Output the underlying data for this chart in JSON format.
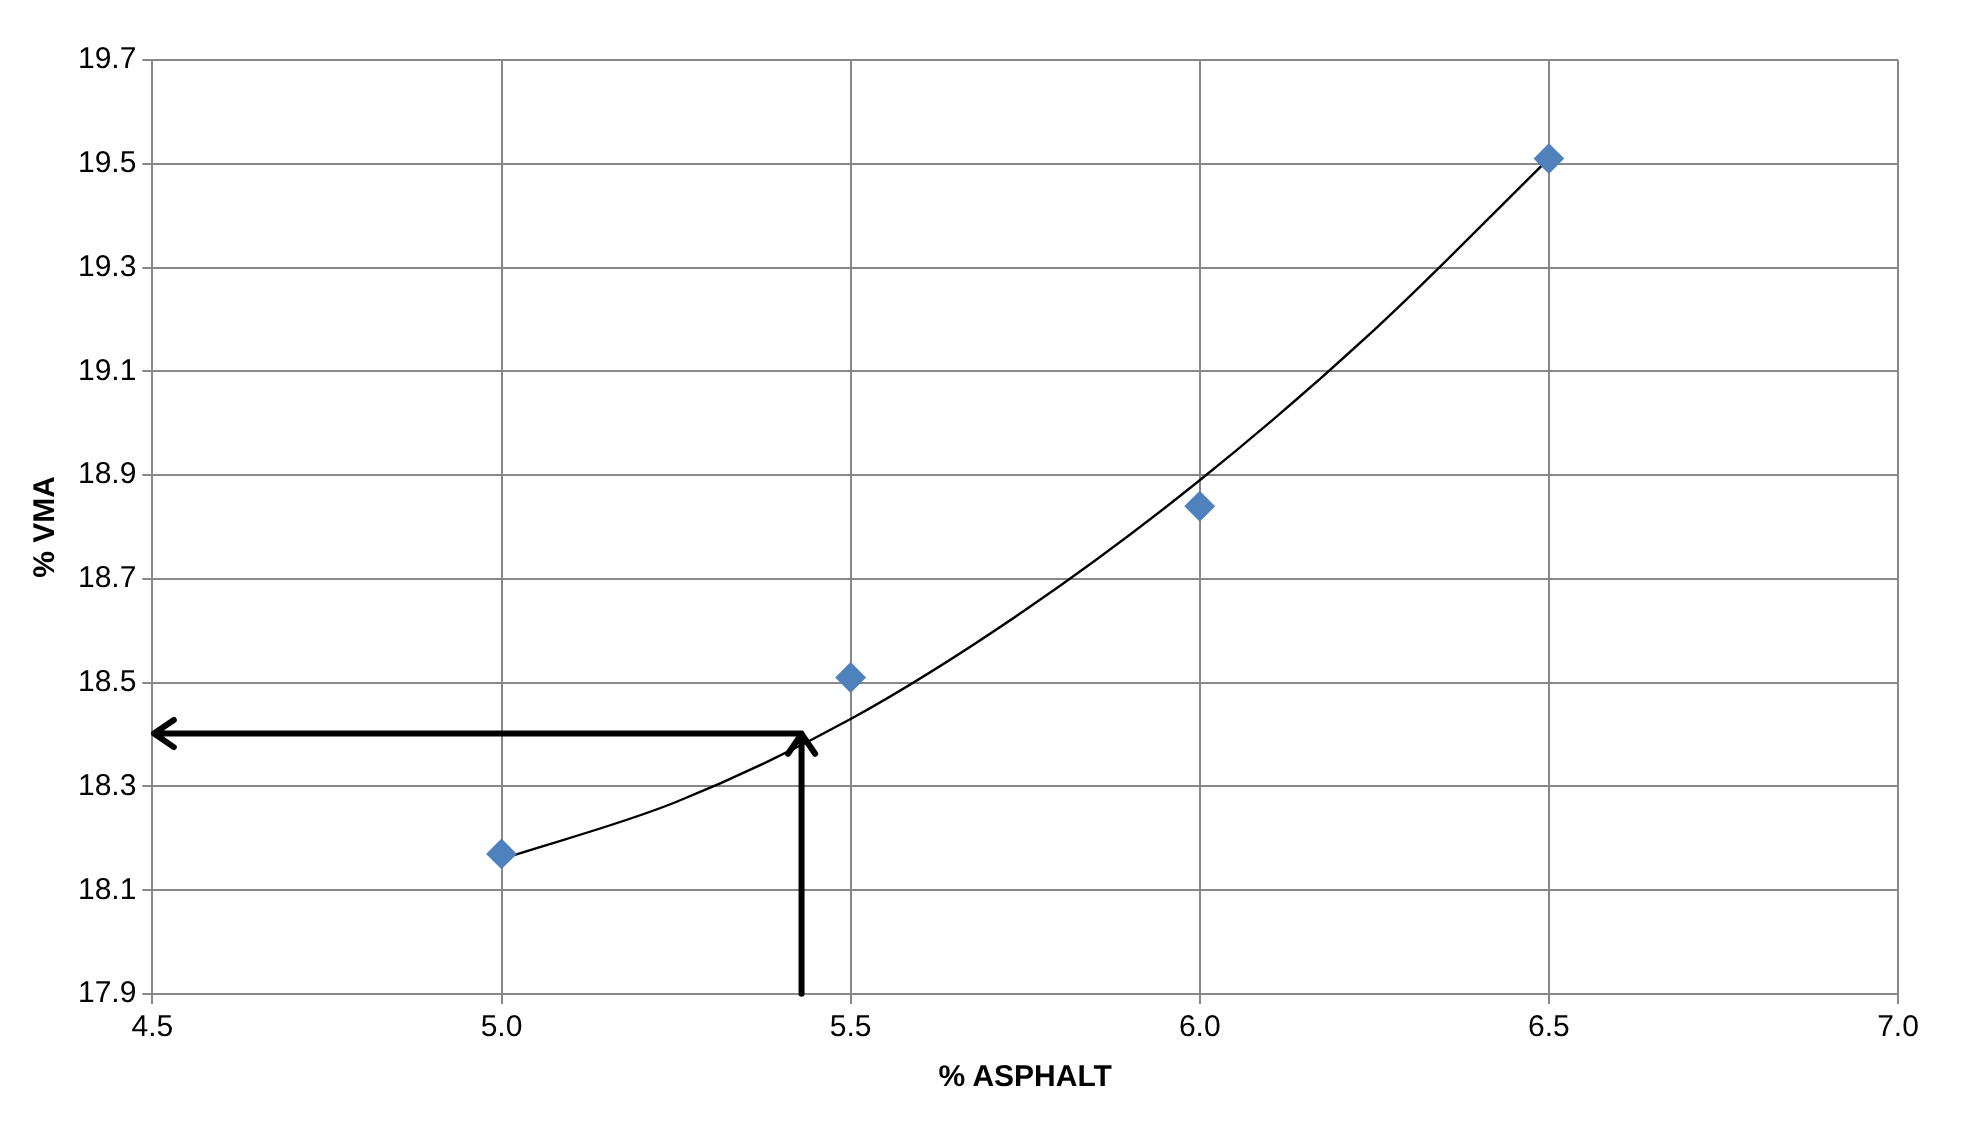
{
  "chart_data": {
    "type": "scatter",
    "xlabel": "% ASPHALT",
    "ylabel": "% VMA",
    "series": [
      {
        "type": "scatter",
        "color": "#4f81bd",
        "marker": "diamond",
        "x": [
          5.0,
          5.5,
          6.0,
          6.5
        ],
        "values": [
          18.17,
          18.51,
          18.84,
          19.51
        ]
      },
      {
        "type": "line",
        "color": "#000000",
        "marker": "none",
        "x": [
          5.0,
          5.25,
          5.5,
          5.75,
          6.0,
          6.25,
          6.5
        ],
        "values": [
          18.16,
          18.27,
          18.43,
          18.64,
          18.89,
          19.18,
          19.51
        ]
      }
    ],
    "xlim": [
      4.5,
      7.0
    ],
    "xticks": [
      {
        "value": 4.5,
        "label": "4.5"
      },
      {
        "value": 5,
        "label": "5.0"
      },
      {
        "value": 5.5,
        "label": "5.5"
      },
      {
        "value": 6,
        "label": "6.0"
      },
      {
        "value": 6.5,
        "label": "6.5"
      },
      {
        "value": 7,
        "label": "7.0"
      }
    ],
    "ylim": [
      17.9,
      19.7
    ],
    "yticks": [
      17.9,
      18.1,
      18.3,
      18.5,
      18.7,
      18.9,
      19.1,
      19.3,
      19.5,
      19.7
    ],
    "grid": true,
    "legend": false
  }
}
